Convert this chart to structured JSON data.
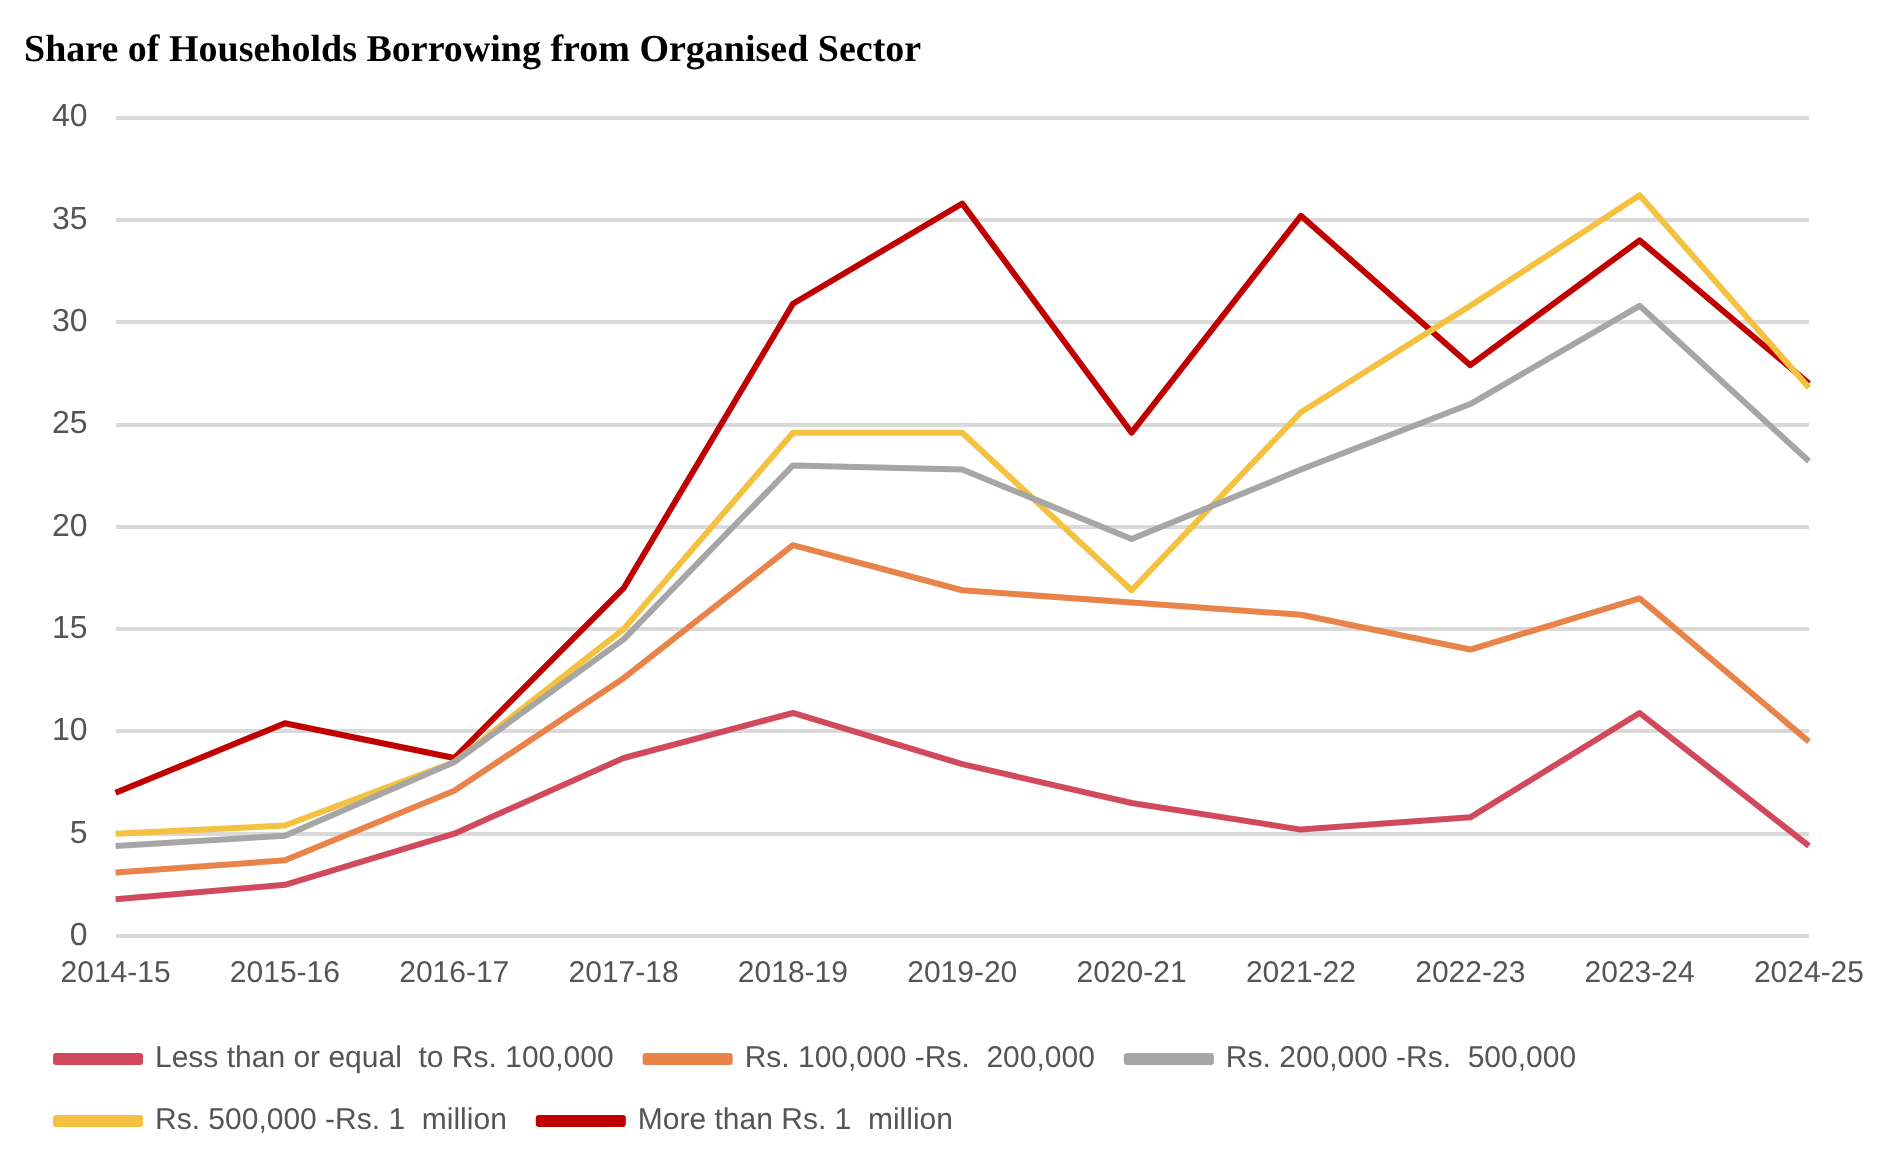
{
  "chart_data": {
    "type": "line",
    "title": "Share of Households Borrowing from Organised Sector",
    "categories": [
      "2014-15",
      "2015-16",
      "2016-17",
      "2017-18",
      "2018-19",
      "2019-20",
      "2020-21",
      "2021-22",
      "2022-23",
      "2023-24",
      "2024-25"
    ],
    "series": [
      {
        "name": "Less than or equal  to Rs. 100,000",
        "color": "#d04a5c",
        "values": [
          1.8,
          2.5,
          5,
          8.7,
          10.9,
          8.4,
          6.5,
          5.2,
          5.8,
          10.9,
          4.4
        ]
      },
      {
        "name": "Rs. 100,000 -Rs.  200,000",
        "color": "#e8834a",
        "values": [
          3.1,
          3.7,
          7.1,
          12.6,
          19.1,
          16.9,
          16.3,
          15.7,
          14,
          16.5,
          9.5
        ]
      },
      {
        "name": "Rs. 200,000 -Rs.  500,000",
        "color": "#a6a6a6",
        "values": [
          4.4,
          4.9,
          8.5,
          14.5,
          23,
          22.8,
          19.4,
          22.8,
          26,
          30.8,
          23.2
        ]
      },
      {
        "name": "Rs. 500,000 -Rs. 1  million",
        "color": "#f4c240",
        "values": [
          5,
          5.4,
          8.5,
          15,
          24.6,
          24.6,
          16.9,
          25.6,
          30.8,
          36.2,
          26.8
        ]
      },
      {
        "name": "More than Rs. 1  million",
        "color": "#c00000",
        "values": [
          7,
          10.4,
          8.7,
          17,
          30.9,
          35.8,
          24.6,
          35.2,
          27.9,
          34,
          27
        ]
      }
    ],
    "ylim": [
      0,
      40
    ],
    "yticks": [
      0,
      5,
      10,
      15,
      20,
      25,
      30,
      35,
      40
    ],
    "grid": "y",
    "legend": "bottom",
    "marker": "none",
    "line_style": "solid"
  }
}
